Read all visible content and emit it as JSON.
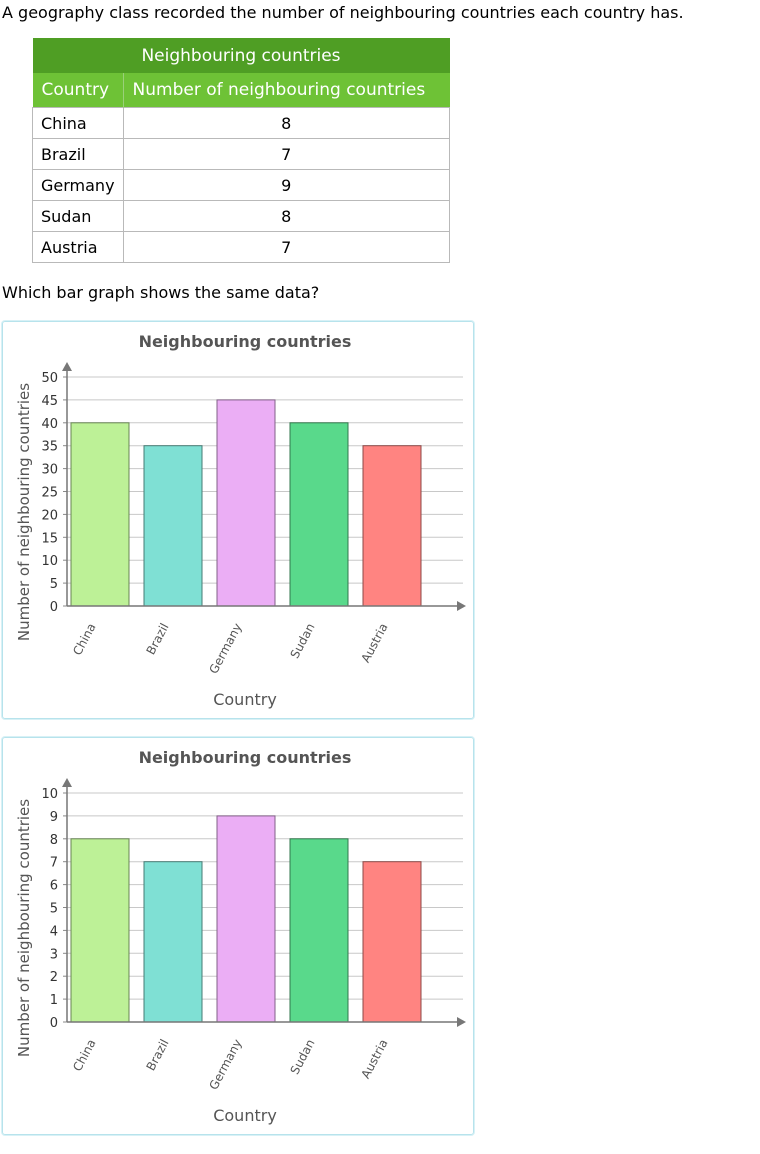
{
  "intro": "A geography class recorded the number of neighbouring countries each country has.",
  "table": {
    "title": "Neighbouring countries",
    "headers": [
      "Country",
      "Number of neighbouring countries"
    ],
    "rows": [
      {
        "country": "China",
        "value": "8"
      },
      {
        "country": "Brazil",
        "value": "7"
      },
      {
        "country": "Germany",
        "value": "9"
      },
      {
        "country": "Sudan",
        "value": "8"
      },
      {
        "country": "Austria",
        "value": "7"
      }
    ]
  },
  "question": "Which bar graph shows the same data?",
  "chart_data": [
    {
      "type": "bar",
      "title": "Neighbouring countries",
      "xlabel": "Country",
      "ylabel": "Number of neighbouring countries",
      "categories": [
        "China",
        "Brazil",
        "Germany",
        "Sudan",
        "Austria"
      ],
      "values": [
        40,
        35,
        45,
        40,
        35
      ],
      "ylim": [
        0,
        50
      ],
      "yticks": [
        "0",
        "5",
        "10",
        "15",
        "20",
        "25",
        "30",
        "35",
        "40",
        "45",
        "50"
      ],
      "colors": [
        "#bdf197",
        "#7fe0d4",
        "#ebaef5",
        "#59d98b",
        "#ff8481"
      ],
      "grid": true
    },
    {
      "type": "bar",
      "title": "Neighbouring countries",
      "xlabel": "Country",
      "ylabel": "Number of neighbouring countries",
      "categories": [
        "China",
        "Brazil",
        "Germany",
        "Sudan",
        "Austria"
      ],
      "values": [
        8,
        7,
        9,
        8,
        7
      ],
      "ylim": [
        0,
        10
      ],
      "yticks": [
        "0",
        "1",
        "2",
        "3",
        "4",
        "5",
        "6",
        "7",
        "8",
        "9",
        "10"
      ],
      "colors": [
        "#bdf197",
        "#7fe0d4",
        "#ebaef5",
        "#59d98b",
        "#ff8481"
      ],
      "grid": true
    }
  ]
}
